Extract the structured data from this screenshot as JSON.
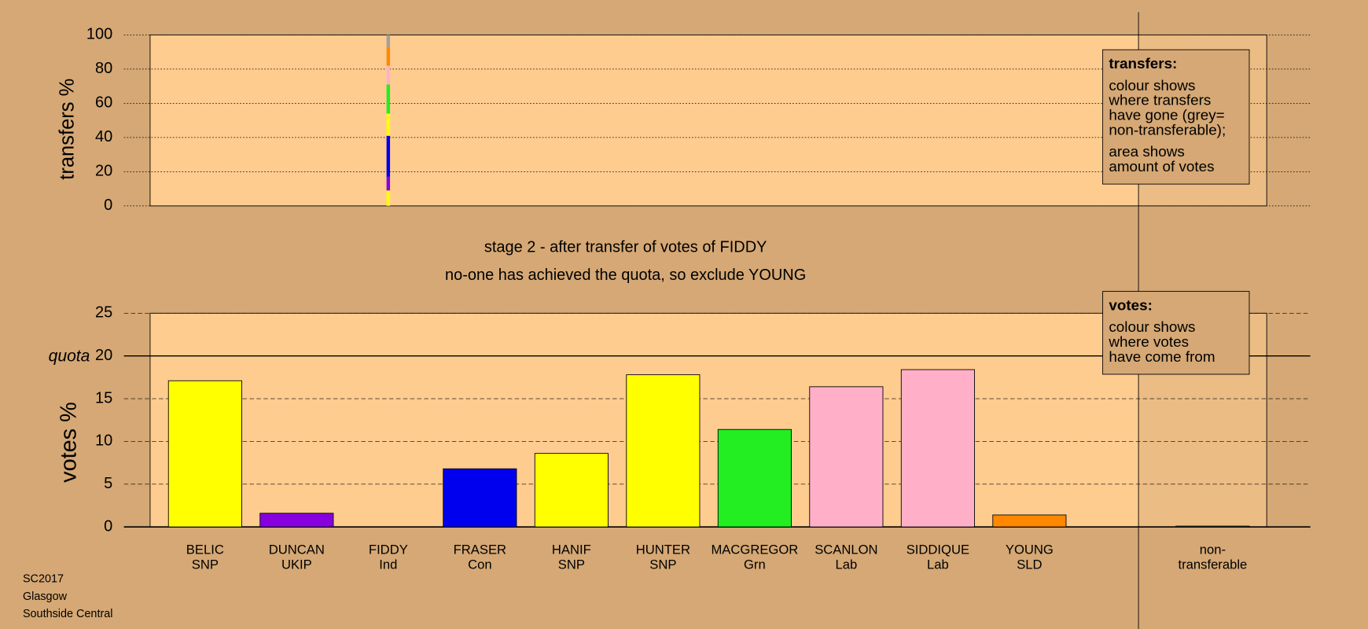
{
  "chart_data": [
    {
      "type": "stacked-bar",
      "ylabel": "transfers %",
      "ylim": [
        0,
        100
      ],
      "yticks": [
        0,
        20,
        40,
        60,
        80,
        100
      ],
      "grid": true,
      "segments": [
        {
          "color": "#ffff00",
          "value": 9
        },
        {
          "color": "#8800dd",
          "value": 8
        },
        {
          "color": "#0000ee",
          "value": 24
        },
        {
          "color": "#ffff00",
          "value": 13
        },
        {
          "color": "#22ee22",
          "value": 17
        },
        {
          "color": "#ffb0c8",
          "value": 11
        },
        {
          "color": "#ff8800",
          "value": 11
        },
        {
          "color": "#a0a0a0",
          "value": 7
        }
      ],
      "legend": {
        "title": "transfers:",
        "lines": [
          "colour shows",
          "where transfers",
          "have gone (grey=",
          "non-transferable);",
          "area shows",
          "amount of votes"
        ]
      }
    },
    {
      "type": "bar",
      "ylabel": "votes %",
      "ylim": [
        0,
        25
      ],
      "yticks": [
        0,
        5,
        10,
        15,
        20,
        25
      ],
      "grid": true,
      "quota": 20,
      "quota_label": "quota",
      "titles": [
        "stage 2 - after transfer of votes of FIDDY",
        "no-one has achieved the quota, so exclude YOUNG"
      ],
      "categories": [
        [
          "BELIC",
          "SNP"
        ],
        [
          "DUNCAN",
          "UKIP"
        ],
        [
          "FIDDY",
          "Ind"
        ],
        [
          "FRASER",
          "Con"
        ],
        [
          "HANIF",
          "SNP"
        ],
        [
          "HUNTER",
          "SNP"
        ],
        [
          "MACGREGOR",
          "Grn"
        ],
        [
          "SCANLON",
          "Lab"
        ],
        [
          "SIDDIQUE",
          "Lab"
        ],
        [
          "YOUNG",
          "SLD"
        ],
        [
          "non-",
          "transferable"
        ]
      ],
      "values": [
        17.1,
        1.6,
        0,
        6.8,
        8.6,
        17.8,
        11.4,
        16.4,
        18.4,
        1.4,
        0.1
      ],
      "colors": [
        "#ffff00",
        "#8800dd",
        "#ffcc90",
        "#0000ee",
        "#ffff00",
        "#ffff00",
        "#22ee22",
        "#ffb0c8",
        "#ffb0c8",
        "#ff8800",
        "#a0a0a0"
      ],
      "legend": {
        "title": "votes:",
        "lines": [
          "colour shows",
          "where votes",
          "have come from"
        ]
      }
    }
  ],
  "footer": [
    "SC2017",
    "Glasgow",
    "Southside Central"
  ]
}
